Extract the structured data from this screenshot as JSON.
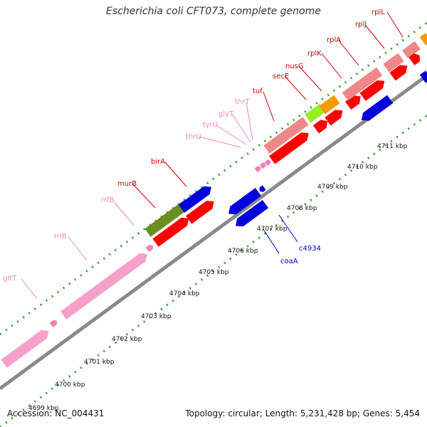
{
  "title": "Escherichia coli CFT073, complete genome",
  "accession": "Accession: NC_004431",
  "summary": "Topology: circular; Length: 5,231,428 bp; Genes: 5,454",
  "colors": {
    "rna_label": "#ee88bb",
    "protein_label": "#cc0000",
    "reverse_label": "#0000cc",
    "rrna": "#f5a0c8",
    "trna": "#f080b8",
    "gene_red": "#ff0000",
    "gene_salmon": "#ee8888",
    "gene_blue": "#0000dd",
    "gene_olive": "#6b8e23",
    "gene_lime": "#99ee22",
    "gene_orange": "#ff9900",
    "backbone": "#999999",
    "ruler": "#339933"
  },
  "kbp_ticks": [
    "4699 kbp",
    "4700 kbp",
    "4701 kbp",
    "4702 kbp",
    "4703 kbp",
    "4704 kbp",
    "4705 kbp",
    "4706 kbp",
    "4707 kbp",
    "4708 kbp",
    "4709 kbp",
    "4710 kbp",
    "4711 kbp"
  ],
  "gene_labels": [
    {
      "text": "gltT",
      "kind": "rna"
    },
    {
      "text": "rrlB",
      "kind": "rna"
    },
    {
      "text": "rrfB",
      "kind": "rna"
    },
    {
      "text": "murB",
      "kind": "protein"
    },
    {
      "text": "birA",
      "kind": "protein"
    },
    {
      "text": "thrU",
      "kind": "rna"
    },
    {
      "text": "tyrU",
      "kind": "rna"
    },
    {
      "text": "glyT",
      "kind": "rna"
    },
    {
      "text": "thrT",
      "kind": "rna"
    },
    {
      "text": "tuf",
      "kind": "protein"
    },
    {
      "text": "secE",
      "kind": "protein"
    },
    {
      "text": "nusG",
      "kind": "protein"
    },
    {
      "text": "rplK",
      "kind": "protein"
    },
    {
      "text": "rplA",
      "kind": "protein"
    },
    {
      "text": "rplJ",
      "kind": "protein"
    },
    {
      "text": "rplL",
      "kind": "protein"
    },
    {
      "text": "c4934",
      "kind": "reverse"
    },
    {
      "text": "coaA",
      "kind": "reverse"
    }
  ]
}
